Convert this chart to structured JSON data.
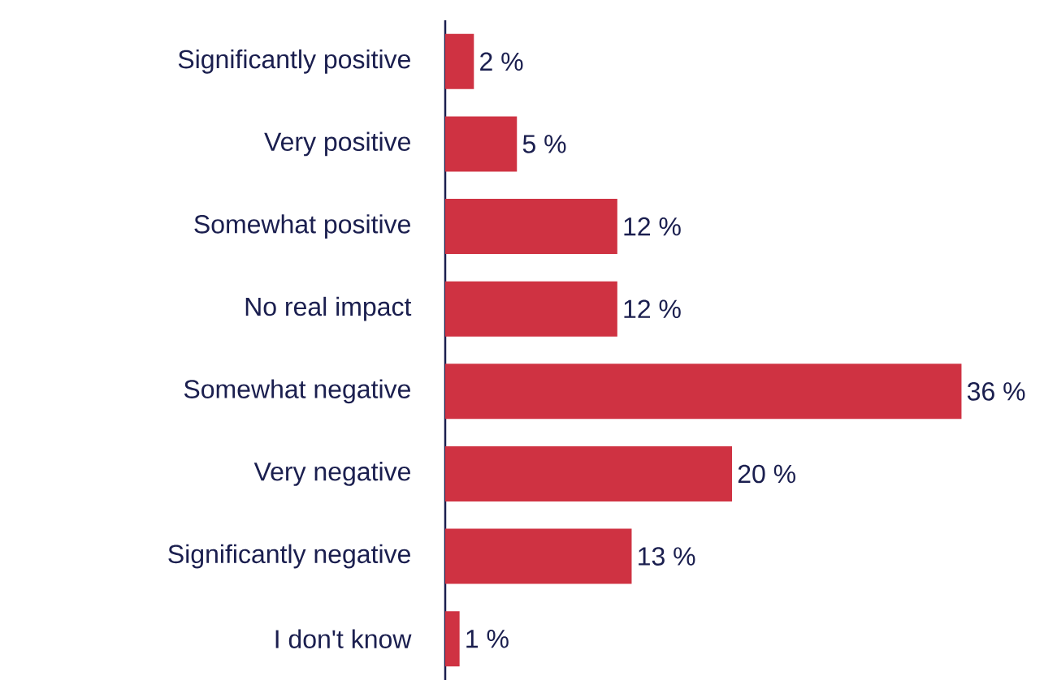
{
  "chart_data": {
    "type": "bar",
    "orientation": "horizontal",
    "color": "#cf3242",
    "categories": [
      "Significantly positive",
      "Very positive",
      "Somewhat positive",
      "No real impact",
      "Somewhat negative",
      "Very negative",
      "Significantly negative",
      "I don't know"
    ],
    "values": [
      2,
      5,
      12,
      12,
      36,
      20,
      13,
      1
    ],
    "value_labels": [
      "2 %",
      "5 %",
      "12 %",
      "12 %",
      "36 %",
      "20 %",
      "13 %",
      "1 %"
    ]
  }
}
